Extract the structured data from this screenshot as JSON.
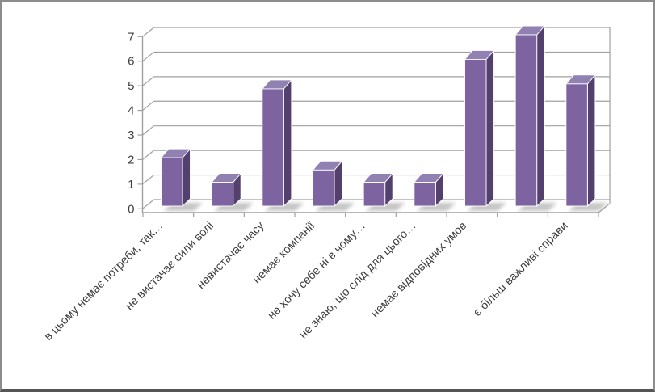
{
  "chart_data": {
    "type": "bar",
    "style": "3d-column",
    "title": "",
    "xlabel": "",
    "ylabel": "",
    "categories": [
      "в цьому немає потреби, так…",
      "не вистачає сили волі",
      "невистачає часу",
      "немає компанії",
      "не хочу себе ні в чому…",
      "не знаю, що слід для цього…",
      "немає відповідних умов",
      "",
      "є більш важливі справи"
    ],
    "values": [
      2,
      1,
      4.8,
      1.5,
      1,
      1,
      6,
      7,
      5
    ],
    "y_ticks": [
      0,
      1,
      2,
      3,
      4,
      5,
      6,
      7
    ],
    "ylim": [
      0,
      7
    ],
    "grid": true,
    "legend": "none",
    "colors": {
      "bar_front": "#7d64a0",
      "bar_side": "#53406c",
      "bar_top": "#9181b2",
      "bar_edge": "#ffffff",
      "gridline": "#a0a0a0",
      "axis_line": "#a0a0a0",
      "axis_text": "#3f3f3f",
      "shadow": "#9a9a9a",
      "background": "#ffffff",
      "frame_border": "#8c8c8c",
      "frame_border_bottom": "#555555"
    }
  }
}
